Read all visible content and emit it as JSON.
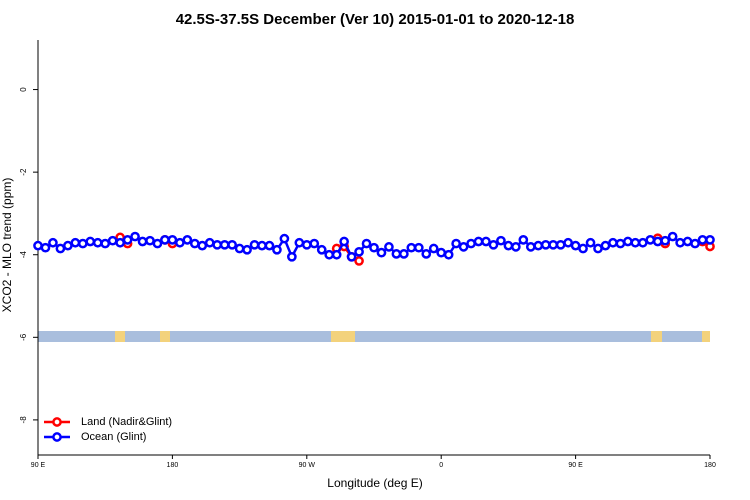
{
  "chart_data": {
    "type": "line",
    "title": "42.5S-37.5S December (Ver 10)   2015-01-01 to 2020-12-18",
    "x_label": "Longitude (deg E)",
    "y_label": "XCO2 - MLO trend (ppm)",
    "x": [
      90,
      95,
      100,
      105,
      110,
      115,
      120,
      125,
      130,
      135,
      140,
      145,
      150,
      155,
      160,
      165,
      170,
      175,
      180,
      185,
      190,
      195,
      200,
      205,
      210,
      215,
      220,
      225,
      230,
      235,
      240,
      245,
      250,
      255,
      260,
      265,
      270,
      275,
      280,
      285,
      290,
      295,
      300,
      305,
      310,
      315,
      320,
      325,
      330,
      335,
      340,
      345,
      350,
      355,
      360,
      365,
      370,
      375,
      380,
      385,
      390,
      395,
      400,
      405,
      410,
      415,
      420,
      425,
      430,
      435,
      440,
      445,
      450,
      455,
      460,
      465,
      470,
      475,
      480,
      485,
      490,
      495,
      500,
      505,
      510,
      515,
      520,
      525,
      530,
      535,
      540
    ],
    "series": [
      {
        "name": "Land (Nadir&Glint)",
        "color": "#ff0000",
        "values": [
          null,
          null,
          null,
          null,
          null,
          null,
          null,
          null,
          null,
          null,
          null,
          -3.58,
          -3.73,
          null,
          null,
          null,
          null,
          -3.64,
          -3.73,
          null,
          null,
          null,
          null,
          null,
          null,
          null,
          null,
          null,
          null,
          null,
          null,
          null,
          null,
          null,
          null,
          null,
          null,
          null,
          null,
          null,
          -3.85,
          -3.8,
          -4.05,
          -4.15,
          null,
          null,
          null,
          null,
          null,
          null,
          null,
          null,
          null,
          null,
          null,
          null,
          null,
          null,
          null,
          null,
          null,
          null,
          null,
          null,
          null,
          null,
          null,
          null,
          null,
          null,
          null,
          null,
          null,
          null,
          null,
          null,
          null,
          null,
          null,
          null,
          null,
          null,
          null,
          -3.6,
          -3.73,
          null,
          null,
          null,
          null,
          -3.68,
          -3.8
        ]
      },
      {
        "name": "Ocean (Glint)",
        "color": "#0000ff",
        "values": [
          -3.78,
          -3.83,
          -3.71,
          -3.85,
          -3.78,
          -3.71,
          -3.73,
          -3.68,
          -3.71,
          -3.73,
          -3.66,
          -3.71,
          -3.64,
          -3.56,
          -3.68,
          -3.66,
          -3.73,
          -3.64,
          -3.64,
          -3.71,
          -3.64,
          -3.73,
          -3.78,
          -3.71,
          -3.76,
          -3.76,
          -3.76,
          -3.85,
          -3.88,
          -3.76,
          -3.78,
          -3.78,
          -3.88,
          -3.61,
          -4.05,
          -3.71,
          -3.76,
          -3.73,
          -3.88,
          -4.0,
          -4.0,
          -3.68,
          -4.05,
          -3.93,
          -3.73,
          -3.83,
          -3.95,
          -3.81,
          -3.98,
          -3.98,
          -3.83,
          -3.83,
          -3.98,
          -3.85,
          -3.95,
          -4.0,
          -3.73,
          -3.81,
          -3.73,
          -3.68,
          -3.68,
          -3.76,
          -3.66,
          -3.78,
          -3.81,
          -3.64,
          -3.81,
          -3.78,
          -3.76,
          -3.76,
          -3.76,
          -3.71,
          -3.78,
          -3.85,
          -3.71,
          -3.85,
          -3.78,
          -3.71,
          -3.73,
          -3.68,
          -3.71,
          -3.71,
          -3.64,
          -3.68,
          -3.66,
          -3.56,
          -3.71,
          -3.68,
          -3.73,
          -3.64,
          -3.64
        ]
      }
    ],
    "xlim": [
      90,
      540
    ],
    "xticks": [
      {
        "value": 90,
        "label": "90 E"
      },
      180,
      {
        "value": 270,
        "label": "90 W"
      },
      {
        "value": 360,
        "label": "0"
      },
      {
        "value": 450,
        "label": "90 E"
      },
      {
        "value": 540,
        "label": "180"
      }
    ],
    "ylim": [
      -8.85,
      1.2
    ],
    "yticks": [
      0,
      -2,
      -4,
      -6,
      -8
    ],
    "legend": "bottom-left"
  }
}
